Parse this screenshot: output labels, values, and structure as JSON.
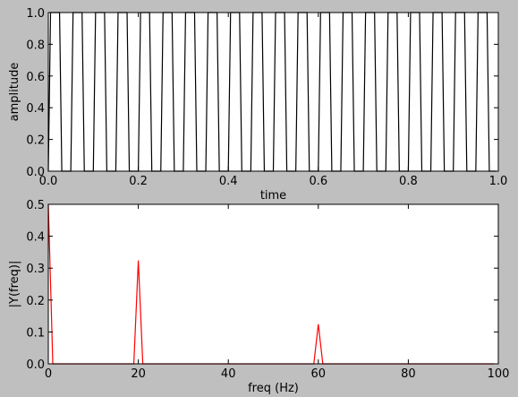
{
  "chart_data": [
    {
      "type": "line",
      "xlabel": "time",
      "ylabel": "amplitude",
      "x": [
        0,
        0.005,
        0.025,
        0.03,
        0.05,
        0.055,
        0.075,
        0.08,
        0.1,
        0.105,
        0.125,
        0.13,
        0.15,
        0.155,
        0.175,
        0.18,
        0.2,
        0.205,
        0.225,
        0.23,
        0.25,
        0.255,
        0.275,
        0.28,
        0.3,
        0.305,
        0.325,
        0.33,
        0.35,
        0.355,
        0.375,
        0.38,
        0.4,
        0.405,
        0.425,
        0.43,
        0.45,
        0.455,
        0.475,
        0.48,
        0.5,
        0.505,
        0.525,
        0.53,
        0.55,
        0.555,
        0.575,
        0.58,
        0.6,
        0.605,
        0.625,
        0.63,
        0.65,
        0.655,
        0.675,
        0.68,
        0.7,
        0.705,
        0.725,
        0.73,
        0.75,
        0.755,
        0.775,
        0.78,
        0.8,
        0.805,
        0.825,
        0.83,
        0.85,
        0.855,
        0.875,
        0.88,
        0.9,
        0.905,
        0.925,
        0.93,
        0.95,
        0.955,
        0.975,
        0.98,
        0.995
      ],
      "values": [
        0,
        1,
        1,
        0,
        0,
        1,
        1,
        0,
        0,
        1,
        1,
        0,
        0,
        1,
        1,
        0,
        0,
        1,
        1,
        0,
        0,
        1,
        1,
        0,
        0,
        1,
        1,
        0,
        0,
        1,
        1,
        0,
        0,
        1,
        1,
        0,
        0,
        1,
        1,
        0,
        0,
        1,
        1,
        0,
        0,
        1,
        1,
        0,
        0,
        1,
        1,
        0,
        0,
        1,
        1,
        0,
        0,
        1,
        1,
        0,
        0,
        1,
        1,
        0,
        0,
        1,
        1,
        0,
        0,
        1,
        1,
        0,
        0,
        1,
        1,
        0,
        0,
        1,
        1,
        0,
        0
      ],
      "color": "#000000",
      "xlim": [
        0,
        1
      ],
      "xticks": [
        {
          "value": 0,
          "label": "0.0"
        },
        0.2,
        0.4,
        0.6,
        0.8,
        {
          "value": 1,
          "label": "1.0"
        }
      ],
      "ylim": [
        0,
        1
      ],
      "yticks": [
        {
          "value": 0,
          "label": "0.0"
        },
        0.2,
        0.4,
        0.6,
        0.8,
        {
          "value": 1,
          "label": "1.0"
        }
      ]
    },
    {
      "type": "line",
      "xlabel": "freq (Hz)",
      "ylabel": "|Y(freq)|",
      "x": [
        0,
        1,
        19,
        20,
        21,
        59,
        60,
        61,
        99
      ],
      "values": [
        0.5,
        0,
        0,
        0.324,
        0,
        0,
        0.124,
        0,
        0
      ],
      "color": "#ff0000",
      "xlim": [
        0,
        100
      ],
      "xticks": [
        0,
        20,
        40,
        60,
        80,
        100
      ],
      "ylim": [
        0,
        0.5
      ],
      "yticks": [
        {
          "value": 0,
          "label": "0.0"
        },
        0.1,
        0.2,
        0.3,
        0.4,
        0.5
      ]
    }
  ]
}
